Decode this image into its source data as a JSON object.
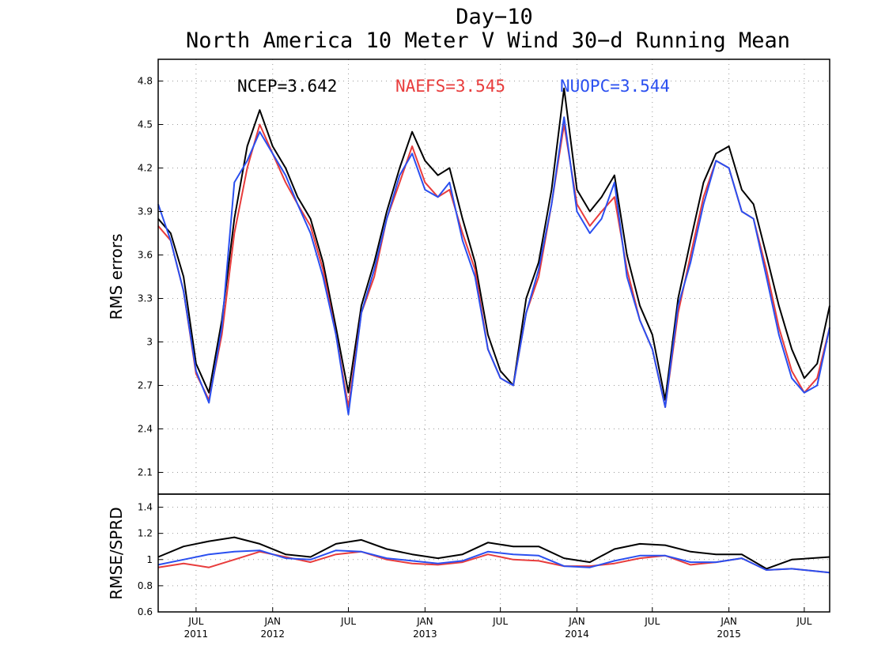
{
  "title_line1": "Day−10",
  "title_line2": "North America 10 Meter V Wind 30−d Running Mean",
  "chart_data": [
    {
      "type": "line",
      "ylabel": "RMS errors",
      "ylim": [
        1.95,
        4.95
      ],
      "yticks": [
        "2.1",
        "2.4",
        "2.7",
        "3",
        "3.3",
        "3.6",
        "3.9",
        "4.2",
        "4.5",
        "4.8"
      ],
      "grid": true,
      "legend": [
        {
          "label": "NCEP=3.642",
          "color": "#000000"
        },
        {
          "label": "NAEFS=3.545",
          "color": "#e83c3c"
        },
        {
          "label": "NUOPC=3.544",
          "color": "#2a4ff0"
        }
      ],
      "x": [
        "2011-04-01",
        "2011-05-01",
        "2011-06-01",
        "2011-07-01",
        "2011-08-01",
        "2011-09-01",
        "2011-10-01",
        "2011-11-01",
        "2011-12-01",
        "2012-01-01",
        "2012-02-01",
        "2012-03-01",
        "2012-04-01",
        "2012-05-01",
        "2012-06-01",
        "2012-07-01",
        "2012-08-01",
        "2012-09-01",
        "2012-10-01",
        "2012-11-01",
        "2012-12-01",
        "2013-01-01",
        "2013-02-01",
        "2013-03-01",
        "2013-04-01",
        "2013-05-01",
        "2013-06-01",
        "2013-07-01",
        "2013-08-01",
        "2013-09-01",
        "2013-10-01",
        "2013-11-01",
        "2013-12-01",
        "2014-01-01",
        "2014-02-01",
        "2014-03-01",
        "2014-04-01",
        "2014-05-01",
        "2014-06-01",
        "2014-07-01",
        "2014-08-01",
        "2014-09-01",
        "2014-10-01",
        "2014-11-01",
        "2014-12-01",
        "2015-01-01",
        "2015-02-01",
        "2015-03-01",
        "2015-04-01",
        "2015-05-01",
        "2015-06-01",
        "2015-07-01",
        "2015-08-01",
        "2015-08-31"
      ],
      "series": [
        {
          "name": "NCEP",
          "color": "#000000",
          "values": [
            3.85,
            3.75,
            3.45,
            2.85,
            2.65,
            3.15,
            3.85,
            4.35,
            4.6,
            4.35,
            4.2,
            4.0,
            3.85,
            3.55,
            3.1,
            2.65,
            3.25,
            3.55,
            3.9,
            4.2,
            4.45,
            4.25,
            4.15,
            4.2,
            3.85,
            3.55,
            3.05,
            2.8,
            2.7,
            3.3,
            3.55,
            4.05,
            4.75,
            4.05,
            3.9,
            4.0,
            4.15,
            3.6,
            3.25,
            3.05,
            2.6,
            3.3,
            3.7,
            4.1,
            4.3,
            4.35,
            4.05,
            3.95,
            3.6,
            3.25,
            2.95,
            2.75,
            2.85,
            3.25
          ]
        },
        {
          "name": "NAEFS",
          "color": "#e83c3c",
          "values": [
            3.8,
            3.7,
            3.35,
            2.78,
            2.6,
            3.05,
            3.75,
            4.2,
            4.5,
            4.3,
            4.1,
            3.95,
            3.8,
            3.5,
            3.05,
            2.55,
            3.2,
            3.45,
            3.85,
            4.1,
            4.35,
            4.1,
            4.0,
            4.05,
            3.75,
            3.5,
            2.95,
            2.75,
            2.7,
            3.2,
            3.45,
            3.95,
            4.5,
            3.95,
            3.8,
            3.9,
            4.0,
            3.5,
            3.15,
            2.95,
            2.55,
            3.2,
            3.6,
            4.0,
            4.25,
            4.2,
            3.9,
            3.85,
            3.5,
            3.1,
            2.8,
            2.65,
            2.75,
            3.1
          ]
        },
        {
          "name": "NUOPC",
          "color": "#2a4ff0",
          "values": [
            3.95,
            3.7,
            3.35,
            2.8,
            2.58,
            3.1,
            4.1,
            4.25,
            4.45,
            4.3,
            4.15,
            3.95,
            3.75,
            3.45,
            3.05,
            2.5,
            3.2,
            3.5,
            3.85,
            4.15,
            4.3,
            4.05,
            4.0,
            4.1,
            3.7,
            3.45,
            2.95,
            2.75,
            2.7,
            3.2,
            3.5,
            3.95,
            4.55,
            3.9,
            3.75,
            3.85,
            4.1,
            3.45,
            3.15,
            2.95,
            2.55,
            3.25,
            3.55,
            3.95,
            4.25,
            4.2,
            3.9,
            3.85,
            3.45,
            3.05,
            2.75,
            2.65,
            2.7,
            3.1
          ]
        }
      ]
    },
    {
      "type": "line",
      "ylabel": "RMSE/SPRD",
      "ylim": [
        0.6,
        1.5
      ],
      "yticks": [
        "0.6",
        "0.8",
        "1",
        "1.2",
        "1.4"
      ],
      "grid": true,
      "x_ticks": [
        {
          "date": "2011-07-01",
          "month": "JUL",
          "year": "2011"
        },
        {
          "date": "2012-01-01",
          "month": "JAN",
          "year": "2012"
        },
        {
          "date": "2012-07-01",
          "month": "JUL",
          "year": ""
        },
        {
          "date": "2013-01-01",
          "month": "JAN",
          "year": "2013"
        },
        {
          "date": "2013-07-01",
          "month": "JUL",
          "year": ""
        },
        {
          "date": "2014-01-01",
          "month": "JAN",
          "year": "2014"
        },
        {
          "date": "2014-07-01",
          "month": "JUL",
          "year": ""
        },
        {
          "date": "2015-01-01",
          "month": "JAN",
          "year": "2015"
        },
        {
          "date": "2015-07-01",
          "month": "JUL",
          "year": ""
        }
      ],
      "x": [
        "2011-04-01",
        "2011-06-01",
        "2011-08-01",
        "2011-10-01",
        "2011-12-01",
        "2012-02-01",
        "2012-04-01",
        "2012-06-01",
        "2012-08-01",
        "2012-10-01",
        "2012-12-01",
        "2013-02-01",
        "2013-04-01",
        "2013-06-01",
        "2013-08-01",
        "2013-10-01",
        "2013-12-01",
        "2014-02-01",
        "2014-04-01",
        "2014-06-01",
        "2014-08-01",
        "2014-10-01",
        "2014-12-01",
        "2015-02-01",
        "2015-04-01",
        "2015-06-01",
        "2015-08-31"
      ],
      "series": [
        {
          "name": "NCEP",
          "color": "#000000",
          "values": [
            1.02,
            1.1,
            1.14,
            1.17,
            1.12,
            1.04,
            1.02,
            1.12,
            1.15,
            1.08,
            1.04,
            1.01,
            1.04,
            1.13,
            1.1,
            1.1,
            1.01,
            0.98,
            1.08,
            1.12,
            1.11,
            1.06,
            1.04,
            1.04,
            0.93,
            1.0,
            1.02
          ]
        },
        {
          "name": "NAEFS",
          "color": "#e83c3c",
          "values": [
            0.94,
            0.97,
            0.94,
            1.0,
            1.06,
            1.02,
            0.98,
            1.04,
            1.06,
            1.0,
            0.97,
            0.96,
            0.98,
            1.04,
            1.0,
            0.99,
            0.95,
            0.95,
            0.97,
            1.01,
            1.03,
            0.96,
            0.98,
            1.01,
            0.92,
            0.93,
            0.9
          ]
        },
        {
          "name": "NUOPC",
          "color": "#2a4ff0",
          "values": [
            0.96,
            1.0,
            1.04,
            1.06,
            1.07,
            1.01,
            1.0,
            1.07,
            1.06,
            1.01,
            0.99,
            0.97,
            0.99,
            1.06,
            1.04,
            1.03,
            0.95,
            0.94,
            0.99,
            1.03,
            1.03,
            0.98,
            0.98,
            1.01,
            0.92,
            0.93,
            0.9
          ]
        }
      ]
    }
  ]
}
